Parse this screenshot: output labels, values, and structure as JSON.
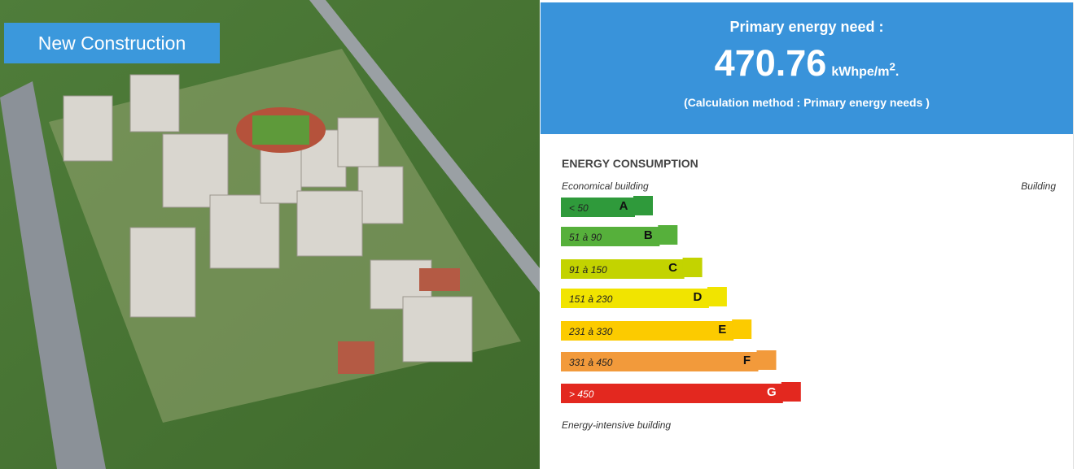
{
  "photo": {
    "tag": "New Construction"
  },
  "header": {
    "title": "Primary energy need :",
    "value": "470.76",
    "unit": "kWhpe/m",
    "unit_sup": "2",
    "unit_end": ".",
    "note": "(Calculation method : Primary energy needs )"
  },
  "energy_scale": {
    "title": "ENERGY CONSUMPTION",
    "top_left": "Economical building",
    "top_right": "Building",
    "bottom": "Energy-intensive building",
    "classes": [
      {
        "range": "< 50",
        "letter": "A",
        "color": "#2f9a3b"
      },
      {
        "range": "51 à 90",
        "letter": "B",
        "color": "#56b03b"
      },
      {
        "range": "91 à 150",
        "letter": "C",
        "color": "#c3d300"
      },
      {
        "range": "151 à 230",
        "letter": "D",
        "color": "#f1e400"
      },
      {
        "range": "231 à 330",
        "letter": "E",
        "color": "#fccb00"
      },
      {
        "range": "331 à 450",
        "letter": "F",
        "color": "#f29a3b"
      },
      {
        "range": "> 450",
        "letter": "G",
        "color": "#e3281f"
      }
    ]
  }
}
